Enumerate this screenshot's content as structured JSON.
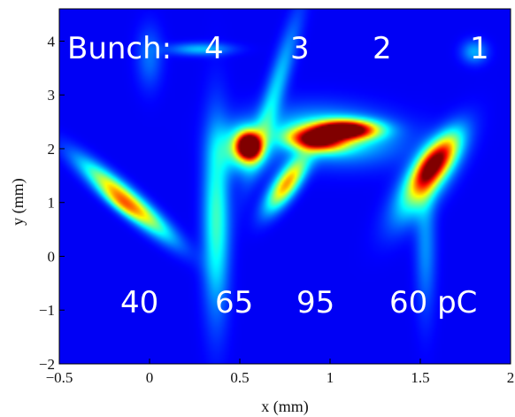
{
  "chart_data": {
    "type": "heatmap",
    "title": "",
    "xlabel": "x (mm)",
    "ylabel": "y (mm)",
    "xlim": [
      -0.5,
      2.0
    ],
    "ylim": [
      -2.0,
      4.6
    ],
    "xticks": [
      "−0.5",
      "0",
      "0.5",
      "1",
      "1.5",
      "2"
    ],
    "xtick_values": [
      -0.5,
      0,
      0.5,
      1,
      1.5,
      2
    ],
    "yticks": [
      "−2",
      "−1",
      "0",
      "1",
      "2",
      "3",
      "4"
    ],
    "ytick_values": [
      -2,
      -1,
      0,
      1,
      2,
      3,
      4
    ],
    "colormap": "jet",
    "colors": {
      "background": "#1a2fbf",
      "low": "#1f3ccf",
      "mid": "#20d0ff",
      "high": "#ffe000",
      "peak": "#cc0000"
    },
    "annotations": {
      "bunch_label": "Bunch:",
      "bunch_numbers": [
        "4",
        "3",
        "2",
        "1"
      ],
      "charges": [
        "40",
        "65",
        "95",
        "60 pC"
      ]
    },
    "blobs": [
      {
        "x": -0.13,
        "y": 1.05,
        "sx": 0.06,
        "sy": 0.5,
        "intensity": 0.62,
        "rotation_deg": -18
      },
      {
        "x": -0.16,
        "y": 0.95,
        "sx": 0.035,
        "sy": 0.2,
        "intensity": 0.18,
        "rotation_deg": -18
      },
      {
        "x": 0.55,
        "y": 2.05,
        "sx": 0.045,
        "sy": 0.17,
        "intensity": 1.0,
        "rotation_deg": 0
      },
      {
        "x": 0.52,
        "y": 2.0,
        "sx": 0.09,
        "sy": 0.3,
        "intensity": 0.35,
        "rotation_deg": 0
      },
      {
        "x": 0.37,
        "y": 0.7,
        "sx": 0.05,
        "sy": 1.2,
        "intensity": 0.32,
        "rotation_deg": 0
      },
      {
        "x": 0.76,
        "y": 1.35,
        "sx": 0.05,
        "sy": 0.35,
        "intensity": 0.6,
        "rotation_deg": 10
      },
      {
        "x": 0.69,
        "y": 3.0,
        "sx": 0.04,
        "sy": 1.0,
        "intensity": 0.22,
        "rotation_deg": 5
      },
      {
        "x": 1.08,
        "y": 2.35,
        "sx": 0.12,
        "sy": 0.12,
        "intensity": 1.0,
        "rotation_deg": -8
      },
      {
        "x": 0.92,
        "y": 2.15,
        "sx": 0.1,
        "sy": 0.14,
        "intensity": 0.72,
        "rotation_deg": -20
      },
      {
        "x": 1.0,
        "y": 2.25,
        "sx": 0.25,
        "sy": 0.35,
        "intensity": 0.3,
        "rotation_deg": -15
      },
      {
        "x": 1.58,
        "y": 1.75,
        "sx": 0.06,
        "sy": 0.35,
        "intensity": 0.62,
        "rotation_deg": 10
      },
      {
        "x": 1.54,
        "y": 1.45,
        "sx": 0.08,
        "sy": 0.55,
        "intensity": 0.42,
        "rotation_deg": 10
      },
      {
        "x": 1.53,
        "y": 0.2,
        "sx": 0.04,
        "sy": 0.9,
        "intensity": 0.15,
        "rotation_deg": 0
      },
      {
        "x": 0.28,
        "y": 3.85,
        "sx": 0.12,
        "sy": 0.08,
        "intensity": 0.2,
        "rotation_deg": 0
      },
      {
        "x": 1.8,
        "y": 3.8,
        "sx": 0.05,
        "sy": 0.15,
        "intensity": 0.18,
        "rotation_deg": 0
      },
      {
        "x": 0.0,
        "y": 3.7,
        "sx": 0.05,
        "sy": 0.4,
        "intensity": 0.12,
        "rotation_deg": 0
      }
    ]
  }
}
